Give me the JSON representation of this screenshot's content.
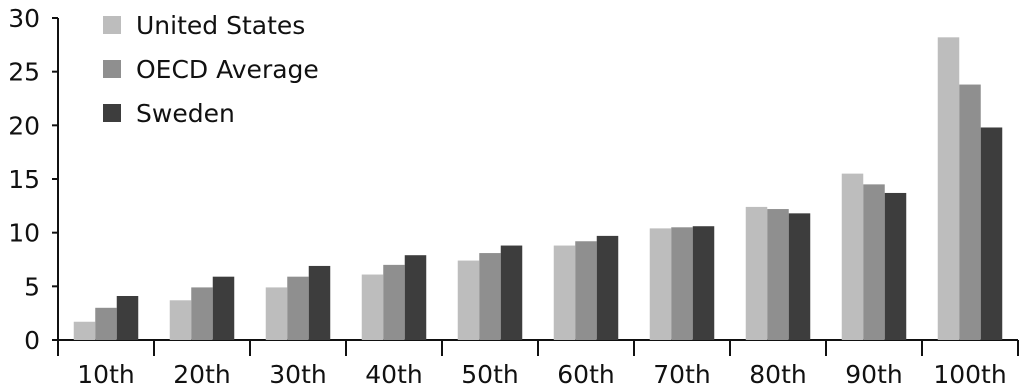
{
  "chart_data": {
    "type": "bar",
    "title": "",
    "xlabel": "",
    "ylabel": "",
    "categories": [
      "10th",
      "20th",
      "30th",
      "40th",
      "50th",
      "60th",
      "70th",
      "80th",
      "90th",
      "100th"
    ],
    "series": [
      {
        "name": "United States",
        "color": "#bdbdbd",
        "values": [
          1.7,
          3.7,
          4.9,
          6.1,
          7.4,
          8.8,
          10.4,
          12.4,
          15.5,
          28.2
        ]
      },
      {
        "name": "OECD Average",
        "color": "#8f8f8f",
        "values": [
          3.0,
          4.9,
          5.9,
          7.0,
          8.1,
          9.2,
          10.5,
          12.2,
          14.5,
          23.8
        ]
      },
      {
        "name": "Sweden",
        "color": "#3d3d3d",
        "values": [
          4.1,
          5.9,
          6.9,
          7.9,
          8.8,
          9.7,
          10.6,
          11.8,
          13.7,
          19.8
        ]
      }
    ],
    "ylim": [
      0,
      30
    ],
    "yticks": [
      0,
      5,
      10,
      15,
      20,
      25,
      30
    ],
    "grid": false,
    "legend_position": "top-left"
  }
}
